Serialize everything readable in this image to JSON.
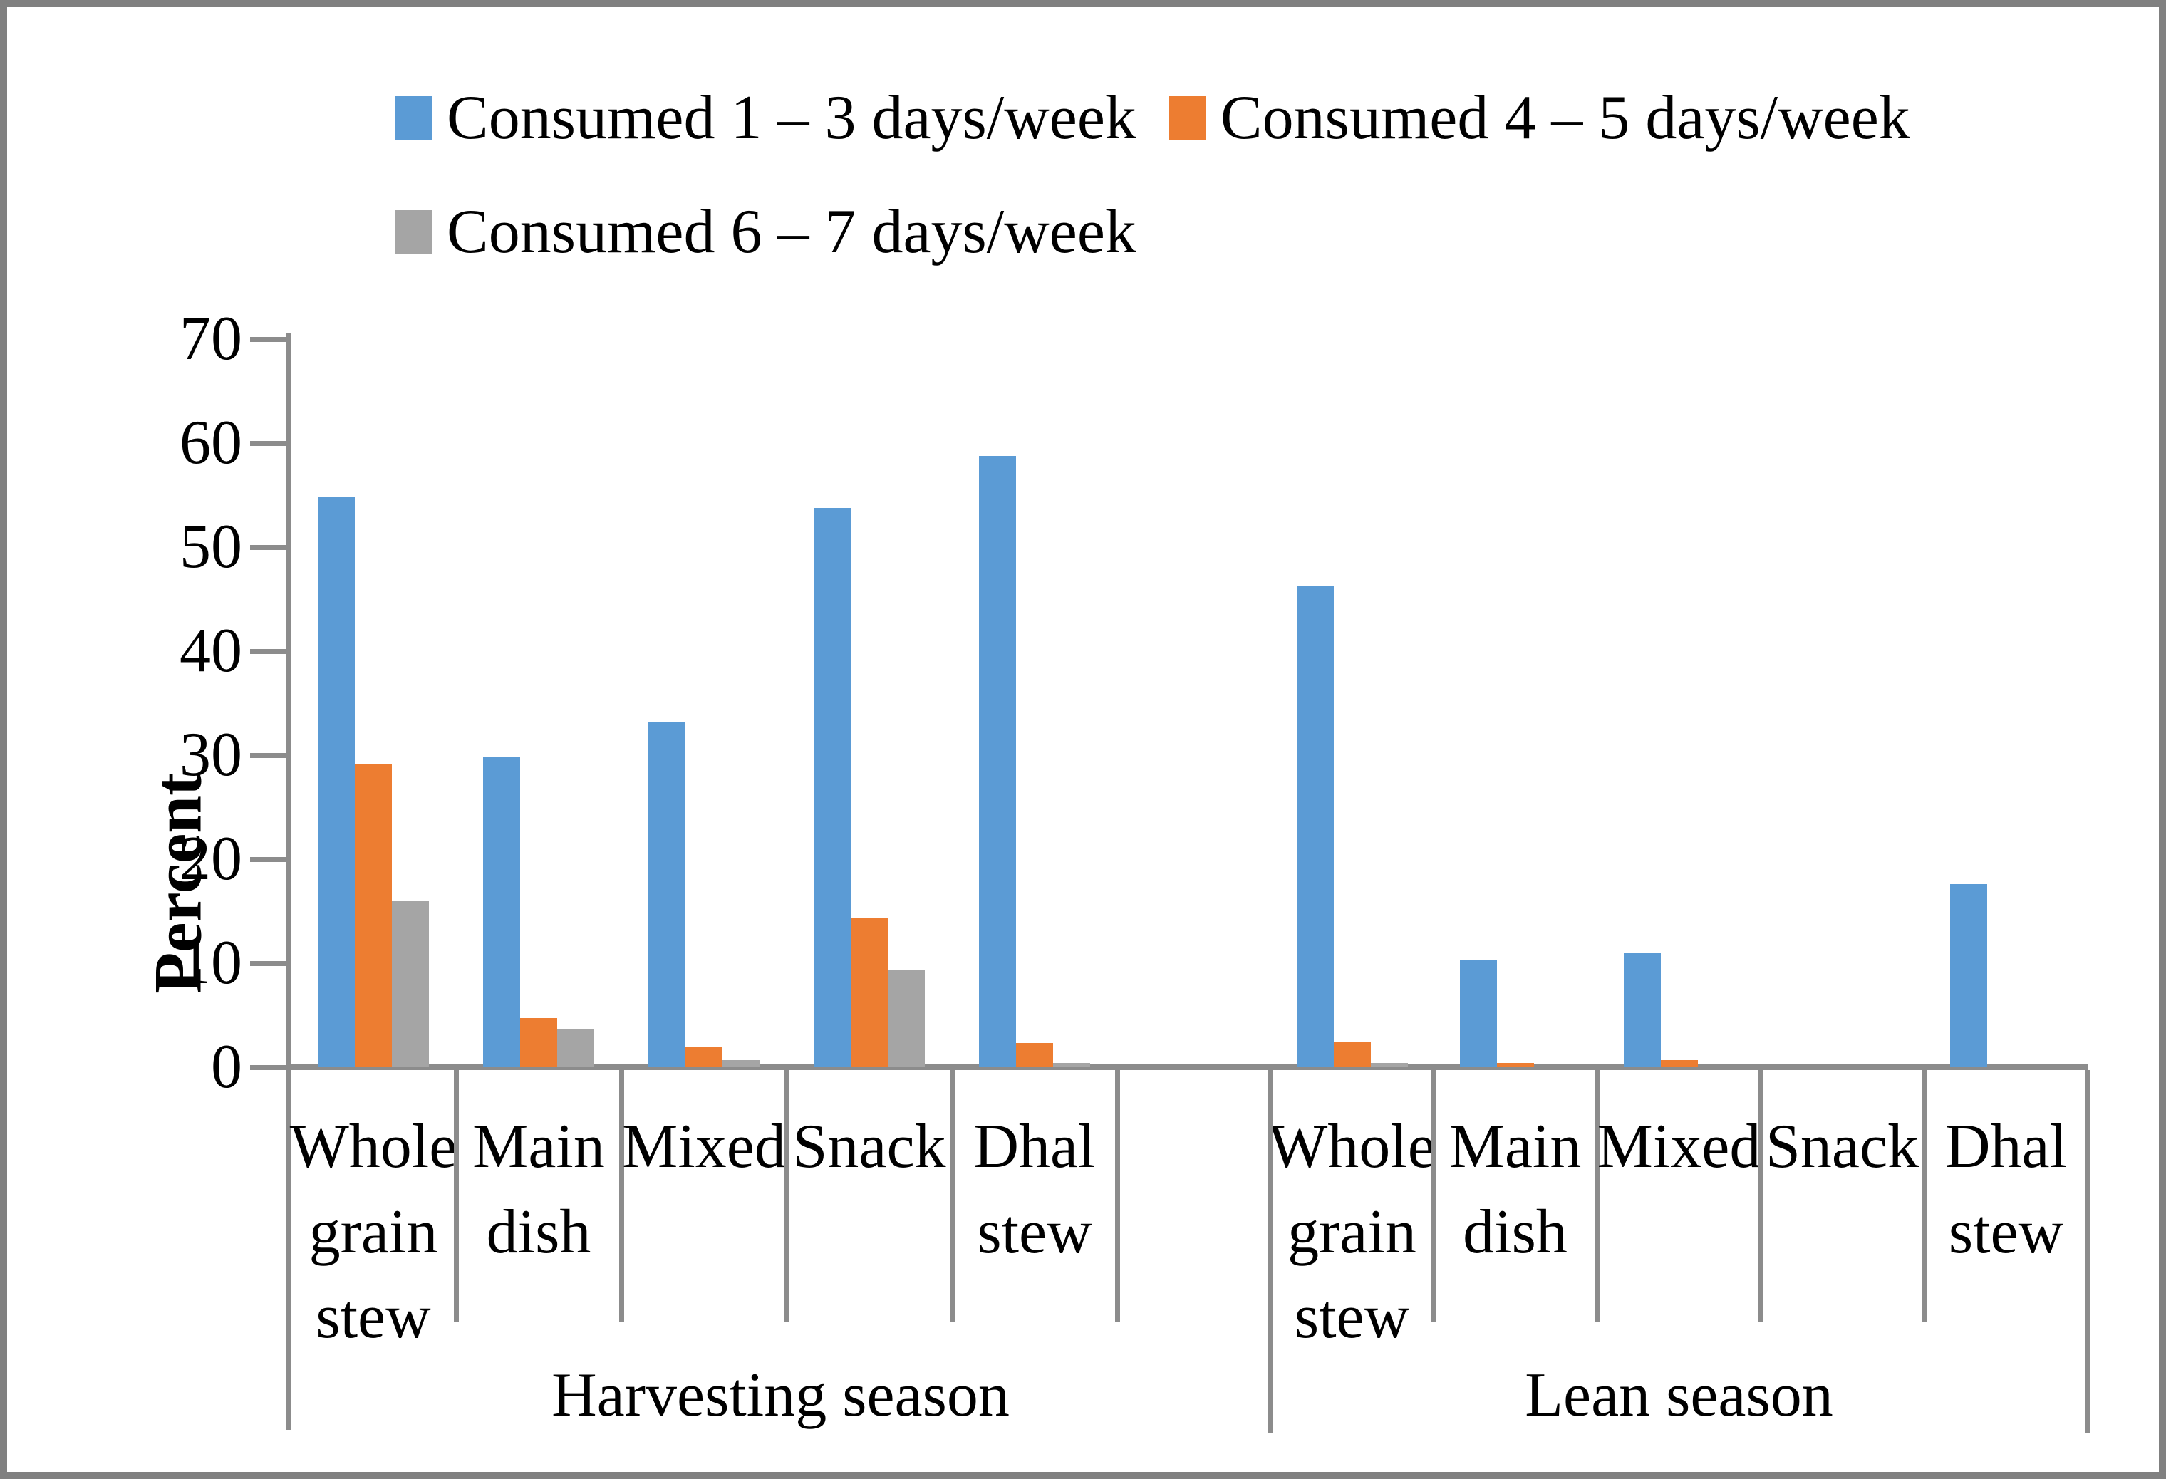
{
  "figure": {
    "background": "#ffffff",
    "border_color": "#808080",
    "axis_color": "#8C8C8C"
  },
  "legend": {
    "items": [
      {
        "label": "Consumed 1 – 3 days/week",
        "color": "#5B9BD5"
      },
      {
        "label": "Consumed 4 – 5 days/week",
        "color": "#ED7D31"
      },
      {
        "label": "Consumed 6 – 7 days/week",
        "color": "#A5A5A5"
      }
    ]
  },
  "chart_data": {
    "type": "bar",
    "title": "",
    "xlabel": "",
    "ylabel": "Percent",
    "ylim": [
      0,
      70
    ],
    "yticks": [
      0,
      10,
      20,
      30,
      40,
      50,
      60,
      70
    ],
    "grid": false,
    "legend_position": "top",
    "group_labels": [
      "Harvesting season",
      "Lean season"
    ],
    "categories": [
      "Whole grain stew",
      "Main dish",
      "Mixed",
      "Snack",
      "Dhal stew"
    ],
    "series": [
      {
        "name": "Consumed 1 – 3 days/week",
        "color": "#5B9BD5",
        "values": [
          [
            54.8,
            29.8,
            33.2,
            53.8,
            58.8
          ],
          [
            46.2,
            10.3,
            11.0,
            0,
            17.6
          ]
        ]
      },
      {
        "name": "Consumed 4 – 5 days/week",
        "color": "#ED7D31",
        "values": [
          [
            29.2,
            4.7,
            2.0,
            14.3,
            2.3
          ],
          [
            2.4,
            0.4,
            0.7,
            0,
            0
          ]
        ]
      },
      {
        "name": "Consumed 6 – 7 days/week",
        "color": "#A5A5A5",
        "values": [
          [
            16.0,
            3.6,
            0.7,
            9.3,
            0.4
          ],
          [
            0.4,
            0,
            0,
            0,
            0
          ]
        ]
      }
    ]
  }
}
